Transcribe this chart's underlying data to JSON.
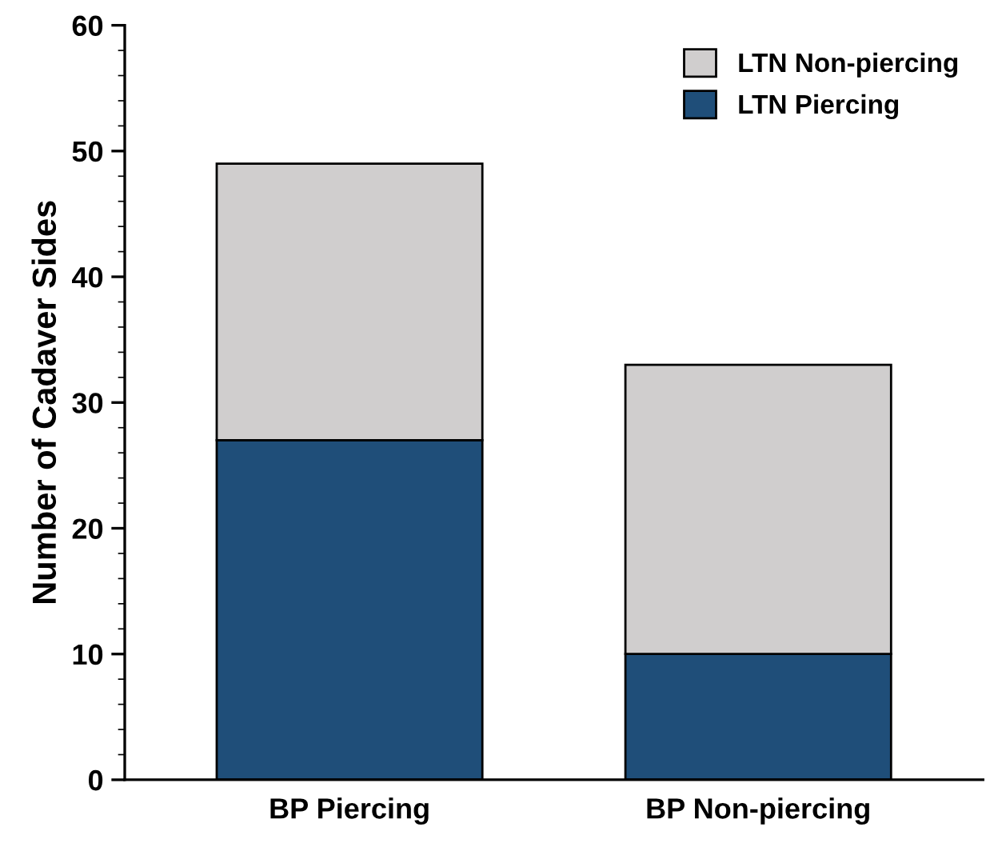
{
  "chart_data": {
    "type": "bar",
    "stacked": true,
    "ylabel": "Number of Cadaver Sides",
    "categories": [
      "BP Piercing",
      "BP Non-piercing"
    ],
    "series": [
      {
        "name": "LTN Piercing",
        "color": "#1f4e79",
        "values": [
          27,
          10
        ]
      },
      {
        "name": "LTN Non-piercing",
        "color": "#d0cece",
        "values": [
          22,
          23
        ]
      }
    ],
    "ylim": [
      0,
      60
    ],
    "yticks": [
      0,
      10,
      20,
      30,
      40,
      50,
      60
    ],
    "grid": false,
    "legend": "top right"
  }
}
